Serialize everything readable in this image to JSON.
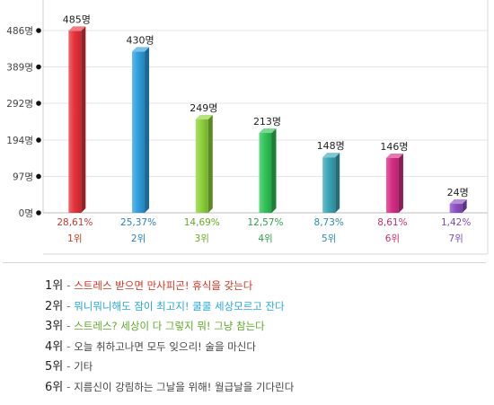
{
  "chart_data": {
    "type": "bar",
    "y_ticks": [
      "486명",
      "389명",
      "292명",
      "194명",
      "97명",
      "0명"
    ],
    "y_tick_values": [
      486,
      389,
      292,
      194,
      97,
      0
    ],
    "ylim": [
      0,
      486
    ],
    "grid": true,
    "categories": [
      "1위",
      "2위",
      "3위",
      "4위",
      "5위",
      "6위",
      "7위"
    ],
    "values": [
      485,
      430,
      249,
      213,
      148,
      146,
      24
    ],
    "value_labels": [
      "485명",
      "430명",
      "249명",
      "213명",
      "148명",
      "146명",
      "24명"
    ],
    "percent_labels": [
      "28,61%",
      "25,37%",
      "14,69%",
      "12,57%",
      "8,73%",
      "8,61%",
      "1,42%"
    ],
    "colors": [
      "#e8323a",
      "#2f9fe0",
      "#8ed23a",
      "#30c458",
      "#3aa7b8",
      "#d82d86",
      "#8e4fc4"
    ],
    "label_colors": [
      "#c0392b",
      "#2a7fc0",
      "#6aa828",
      "#2e9e4a",
      "#2a8ea2",
      "#c0306f",
      "#7c4bb5"
    ]
  },
  "list": [
    {
      "rank": "1위",
      "text": "스트레스 받으면 만사피곤! 휴식을 갖는다",
      "color": "#d0331f"
    },
    {
      "rank": "2위",
      "text": "뭐니뭐니해도 잠이 최고지! 쿨쿨 세상모르고 잔다",
      "color": "#29a7d9"
    },
    {
      "rank": "3위",
      "text": "스트레스? 세상이 다 그렇지 뭐! 그냥 참는다",
      "color": "#5ea82a"
    },
    {
      "rank": "4위",
      "text": "오늘 취하고나면 모두 잊으리! 술을 마신다",
      "color": "#444444"
    },
    {
      "rank": "5위",
      "text": "기타",
      "color": "#444444"
    },
    {
      "rank": "6위",
      "text": "지름신이 강림하는 그날을 위해! 월급날을 기다린다",
      "color": "#444444"
    }
  ]
}
